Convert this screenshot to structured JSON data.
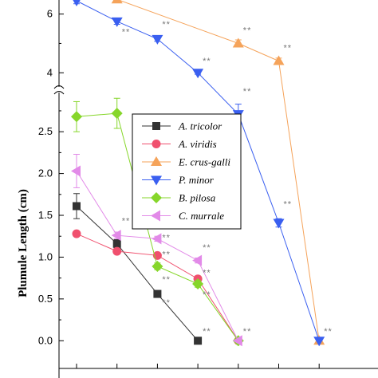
{
  "chart_data": {
    "type": "line",
    "ylabel": "Plumule Length (cm)",
    "ylim_lower": [
      -0.15,
      2.95
    ],
    "ylim_upper": [
      3.6,
      6.75
    ],
    "y_ticks_lower": [
      "0.0",
      "0.5",
      "1.0",
      "1.5",
      "2.0",
      "2.5"
    ],
    "y_ticks_upper": [
      "4",
      "6"
    ],
    "x_positions": [
      1,
      2,
      3,
      4,
      5,
      6,
      7
    ],
    "series": [
      {
        "name": "A. tricolor",
        "color": "#333333",
        "marker": "square",
        "points": [
          [
            1,
            1.61
          ],
          [
            2,
            1.16
          ],
          [
            3,
            0.56
          ],
          [
            4,
            0.0
          ]
        ],
        "errors": [
          0.15,
          0.05,
          0.03,
          0
        ]
      },
      {
        "name": "A. viridis",
        "color": "#f0506e",
        "marker": "circle",
        "points": [
          [
            1,
            1.28
          ],
          [
            2,
            1.07
          ],
          [
            3,
            1.02
          ],
          [
            4,
            0.74
          ],
          [
            5,
            0.0
          ]
        ],
        "errors": [
          0,
          0.03,
          0.03,
          0.03,
          0
        ]
      },
      {
        "name": "E. crus-galli",
        "color": "#f5a35a",
        "marker": "triangle-up",
        "points": [
          [
            2,
            6.5
          ],
          [
            5,
            5.0
          ],
          [
            6,
            4.4
          ],
          [
            7,
            0.0
          ]
        ],
        "errors": [
          0.05,
          0.12,
          0.1,
          0
        ]
      },
      {
        "name": "P. minor",
        "color": "#3a5ff0",
        "marker": "triangle-down",
        "points": [
          [
            1,
            6.45
          ],
          [
            2,
            5.75
          ],
          [
            3,
            5.15
          ],
          [
            4,
            4.0
          ],
          [
            5,
            2.71
          ],
          [
            6,
            1.41
          ],
          [
            7,
            0.0
          ]
        ],
        "errors": [
          0.1,
          0.1,
          0.08,
          0.05,
          0.12,
          0.05,
          0
        ]
      },
      {
        "name": "B. pilosa",
        "color": "#86d62a",
        "marker": "diamond",
        "points": [
          [
            1,
            2.68
          ],
          [
            2,
            2.72
          ],
          [
            3,
            0.89
          ],
          [
            4,
            0.68
          ],
          [
            5,
            0.0
          ]
        ],
        "errors": [
          0.18,
          0.18,
          0.04,
          0.04,
          0
        ]
      },
      {
        "name": "C. murrale",
        "color": "#e28ae8",
        "marker": "triangle-left",
        "points": [
          [
            1,
            2.03
          ],
          [
            2,
            1.26
          ],
          [
            3,
            1.22
          ],
          [
            4,
            0.96
          ],
          [
            5,
            0.0
          ]
        ],
        "errors": [
          0.2,
          0.04,
          0.03,
          0.03,
          0
        ]
      }
    ],
    "annotations": [
      {
        "text": "**",
        "x": 2,
        "y": 5.3,
        "panel": "upper"
      },
      {
        "text": "**",
        "x": 3,
        "y": 5.55,
        "panel": "upper"
      },
      {
        "text": "**",
        "x": 4,
        "y": 4.3,
        "panel": "upper"
      },
      {
        "text": "**",
        "x": 5,
        "y": 5.35,
        "panel": "upper"
      },
      {
        "text": "**",
        "x": 6,
        "y": 4.75,
        "panel": "upper"
      },
      {
        "text": "**",
        "x": 5,
        "y": 2.95,
        "panel": "lower"
      },
      {
        "text": "**",
        "x": 6,
        "y": 1.6,
        "panel": "lower"
      },
      {
        "text": "**",
        "x": 2,
        "y": 1.4,
        "panel": "lower"
      },
      {
        "text": "**",
        "x": 3,
        "y": 1.2,
        "panel": "lower"
      },
      {
        "text": "**",
        "x": 3,
        "y": 1.0,
        "panel": "lower"
      },
      {
        "text": "**",
        "x": 3,
        "y": 0.7,
        "panel": "lower"
      },
      {
        "text": "**",
        "x": 3,
        "y": 0.42,
        "panel": "lower"
      },
      {
        "text": "**",
        "x": 4,
        "y": 1.08,
        "panel": "lower"
      },
      {
        "text": "**",
        "x": 4,
        "y": 0.78,
        "panel": "lower"
      },
      {
        "text": "**",
        "x": 4,
        "y": 0.52,
        "panel": "lower"
      },
      {
        "text": "**",
        "x": 4,
        "y": 0.08,
        "panel": "lower"
      },
      {
        "text": "**",
        "x": 5,
        "y": 0.08,
        "panel": "lower"
      },
      {
        "text": "**",
        "x": 7,
        "y": 0.08,
        "panel": "lower"
      }
    ],
    "legend_position": "center",
    "grid": false
  }
}
